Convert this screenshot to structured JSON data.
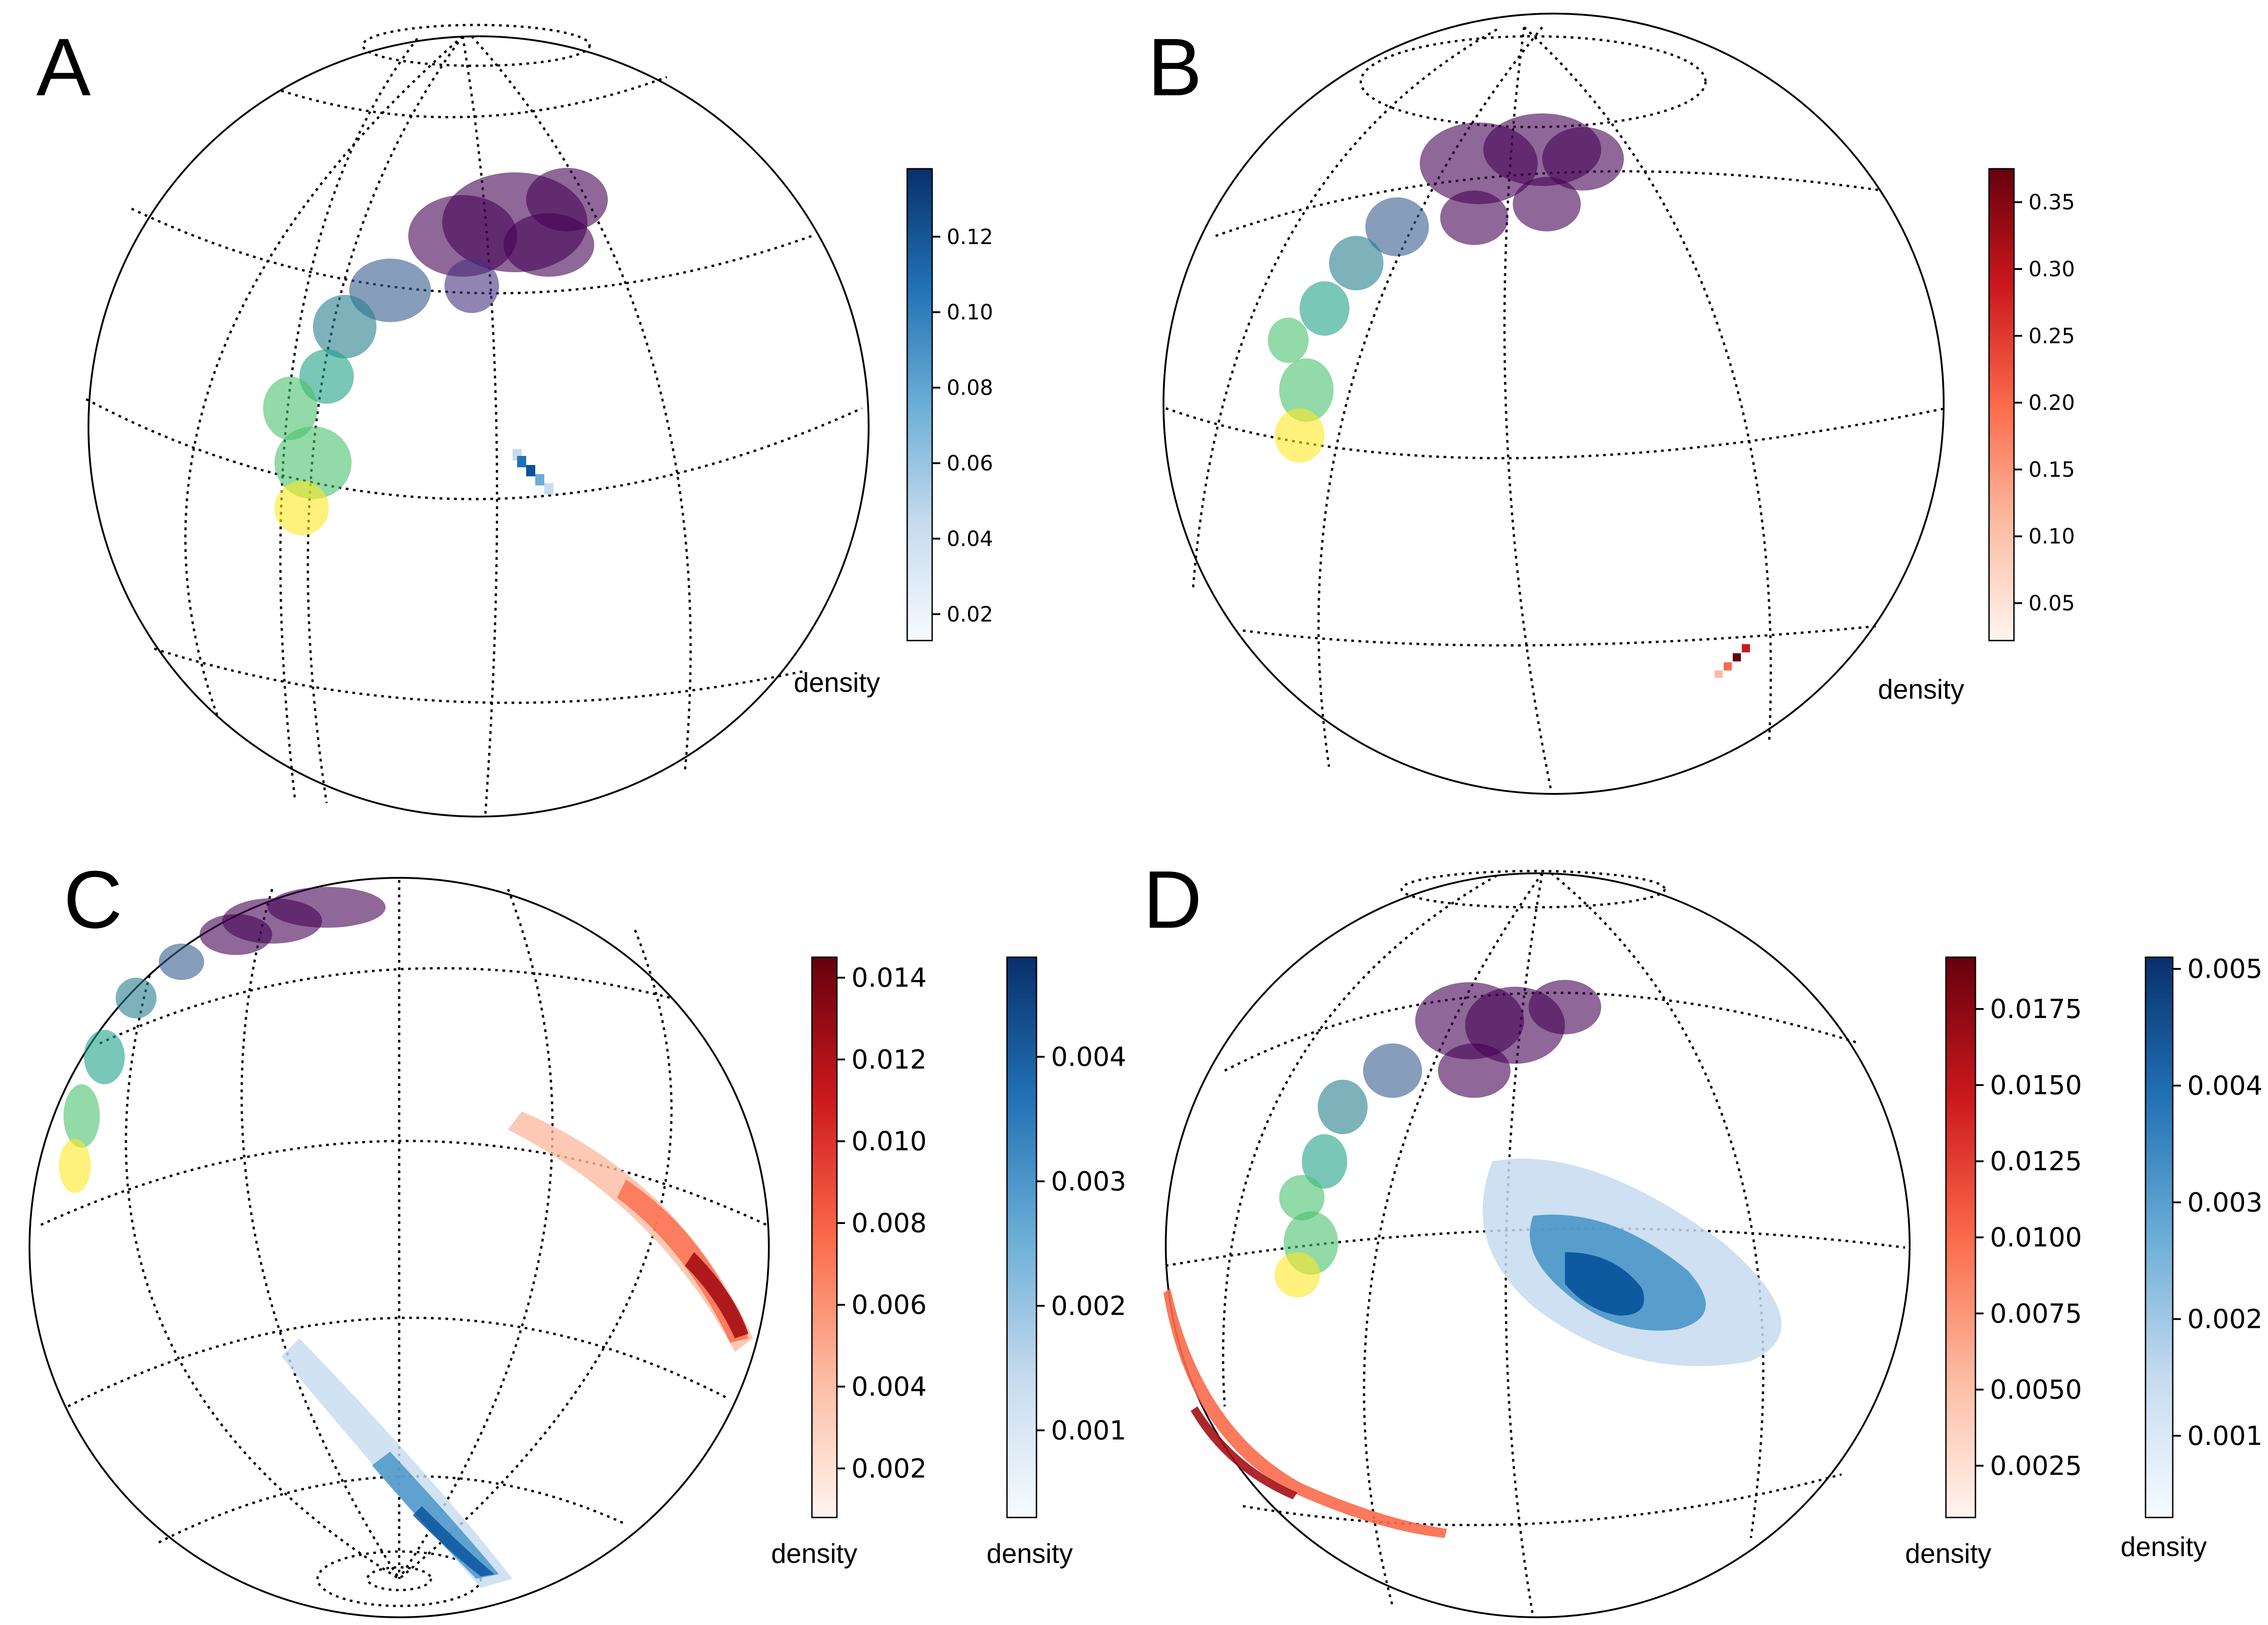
{
  "chart_data": [
    {
      "panel": "A",
      "type": "heatmap",
      "colorbars": [
        {
          "label": "density",
          "colormap": "Blues",
          "min": 0.013,
          "max": 0.138,
          "ticks": [
            "0.02",
            "0.04",
            "0.06",
            "0.08",
            "0.10",
            "0.12"
          ],
          "tick_values": [
            0.02,
            0.04,
            0.06,
            0.08,
            0.1,
            0.12
          ]
        }
      ]
    },
    {
      "panel": "B",
      "type": "heatmap",
      "colorbars": [
        {
          "label": "density",
          "colormap": "Reds",
          "min": 0.022,
          "max": 0.375,
          "ticks": [
            "0.05",
            "0.10",
            "0.15",
            "0.20",
            "0.25",
            "0.30",
            "0.35"
          ],
          "tick_values": [
            0.05,
            0.1,
            0.15,
            0.2,
            0.25,
            0.3,
            0.35
          ]
        }
      ]
    },
    {
      "panel": "C",
      "type": "heatmap",
      "colorbars": [
        {
          "label": "density",
          "colormap": "Reds",
          "min": 0.0008,
          "max": 0.0145,
          "ticks": [
            "0.002",
            "0.004",
            "0.006",
            "0.008",
            "0.010",
            "0.012",
            "0.014"
          ],
          "tick_values": [
            0.002,
            0.004,
            0.006,
            0.008,
            0.01,
            0.012,
            0.014
          ]
        },
        {
          "label": "density",
          "colormap": "Blues",
          "min": 0.0003,
          "max": 0.0048,
          "ticks": [
            "0.001",
            "0.002",
            "0.003",
            "0.004"
          ],
          "tick_values": [
            0.001,
            0.002,
            0.003,
            0.004
          ]
        }
      ]
    },
    {
      "panel": "D",
      "type": "heatmap",
      "colorbars": [
        {
          "label": "density",
          "colormap": "Reds",
          "min": 0.0008,
          "max": 0.0192,
          "ticks": [
            "0.0025",
            "0.0050",
            "0.0075",
            "0.0100",
            "0.0125",
            "0.0150",
            "0.0175"
          ],
          "tick_values": [
            0.0025,
            0.005,
            0.0075,
            0.01,
            0.0125,
            0.015,
            0.0175
          ]
        },
        {
          "label": "density",
          "colormap": "Blues",
          "min": 0.0003,
          "max": 0.0051,
          "ticks": [
            "0.001",
            "0.002",
            "0.003",
            "0.004",
            "0.005"
          ],
          "tick_values": [
            0.001,
            0.002,
            0.003,
            0.004,
            0.005
          ]
        }
      ]
    }
  ],
  "colors": {
    "blues_low": "#f7fbff",
    "blues_high": "#08306b",
    "reds_low": "#fff5f0",
    "reds_high": "#67000d",
    "trajectory_start": "#fde725",
    "trajectory_end": "#440154"
  }
}
